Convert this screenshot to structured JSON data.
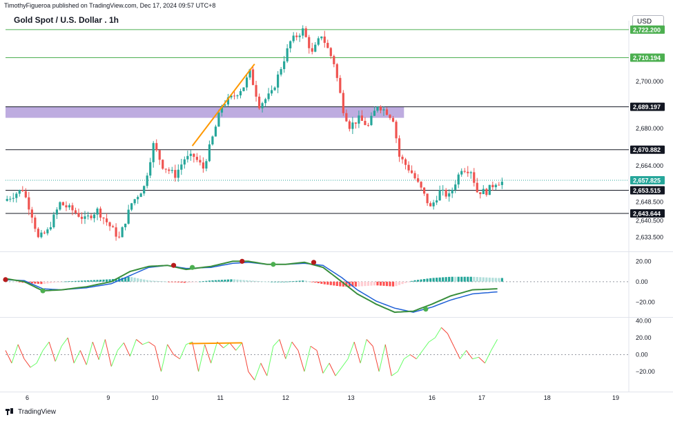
{
  "header": {
    "attribution": "TimothyFigueroa published on TradingView.com, Dec 17, 2024 09:57 UTC+8",
    "symbol_title": "Gold Spot / U.S. Dollar . 1h",
    "currency": "USD"
  },
  "footer": {
    "brand": "TradingView"
  },
  "colors": {
    "up": "#26a69a",
    "down": "#ef5350",
    "zone": "#b39ddb",
    "trend": "#ff9800",
    "resistance_green": "#4caf50",
    "black_line": "#131722",
    "macd_line": "#388e3c",
    "signal_line": "#1e5fd6",
    "macd_dark": "#b71c1c",
    "osc_up": "#66ff66",
    "osc_down": "#f44336"
  },
  "chart_data": [
    {
      "type": "candlestick",
      "name": "price",
      "x_ticks": [
        {
          "label": "6",
          "t": 7
        },
        {
          "label": "9",
          "t": 33
        },
        {
          "label": "10",
          "t": 48
        },
        {
          "label": "11",
          "t": 69
        },
        {
          "label": "12",
          "t": 90
        },
        {
          "label": "13",
          "t": 111
        },
        {
          "label": "16",
          "t": 137
        },
        {
          "label": "17",
          "t": 153
        },
        {
          "label": "18",
          "t": 174
        },
        {
          "label": "19",
          "t": 196
        }
      ],
      "y_ticks": [
        2633.5,
        2640.5,
        2648.5,
        2664.0,
        2680.0,
        2700.0
      ],
      "ylim": [
        2628,
        2726
      ],
      "price_levels": [
        {
          "value": 2722.2,
          "label": "2,722.200",
          "color": "#4caf50"
        },
        {
          "value": 2710.194,
          "label": "2,710.194",
          "color": "#4caf50"
        },
        {
          "value": 2689.197,
          "label": "2,689.197",
          "color": "#131722"
        },
        {
          "value": 2670.882,
          "label": "2,670.882",
          "color": "#131722"
        },
        {
          "value": 2657.825,
          "label": "2,657.825",
          "color": "#26a69a",
          "dotted": true
        },
        {
          "value": 2653.515,
          "label": "2,653.515",
          "color": "#131722"
        },
        {
          "value": 2643.644,
          "label": "2,643.644",
          "color": "#131722"
        }
      ],
      "zone": {
        "from": 2684.5,
        "to": 2689.197
      },
      "trend_line": {
        "t1": 60,
        "v1": 2672.5,
        "t2": 80,
        "v2": 2707.5
      },
      "anchors": [
        [
          0,
          2649
        ],
        [
          6,
          2654
        ],
        [
          9,
          2643
        ],
        [
          11,
          2633
        ],
        [
          14,
          2636
        ],
        [
          18,
          2648
        ],
        [
          22,
          2645
        ],
        [
          26,
          2641
        ],
        [
          30,
          2645
        ],
        [
          33,
          2640
        ],
        [
          37,
          2633
        ],
        [
          41,
          2648
        ],
        [
          45,
          2655
        ],
        [
          48,
          2673
        ],
        [
          51,
          2664
        ],
        [
          55,
          2660
        ],
        [
          58,
          2667
        ],
        [
          61,
          2668
        ],
        [
          64,
          2663
        ],
        [
          67,
          2676
        ],
        [
          70,
          2690
        ],
        [
          74,
          2694
        ],
        [
          77,
          2698
        ],
        [
          79,
          2704
        ],
        [
          82,
          2690
        ],
        [
          86,
          2695
        ],
        [
          89,
          2706
        ],
        [
          92,
          2717
        ],
        [
          96,
          2722
        ],
        [
          99,
          2712
        ],
        [
          102,
          2720
        ],
        [
          106,
          2708
        ],
        [
          109,
          2688
        ],
        [
          111,
          2681
        ],
        [
          114,
          2684
        ],
        [
          117,
          2681
        ],
        [
          120,
          2690
        ],
        [
          123,
          2687
        ],
        [
          125,
          2684
        ],
        [
          127,
          2668
        ],
        [
          131,
          2661
        ],
        [
          134,
          2654
        ],
        [
          137,
          2646
        ],
        [
          140,
          2653
        ],
        [
          143,
          2651
        ],
        [
          147,
          2663
        ],
        [
          150,
          2662
        ],
        [
          152,
          2653
        ],
        [
          155,
          2653
        ],
        [
          158,
          2657
        ]
      ]
    },
    {
      "type": "macd",
      "y_ticks": [
        20.0,
        0.0,
        -20.0
      ],
      "ylim": [
        -32,
        27
      ],
      "macd_anchors": [
        [
          0,
          3
        ],
        [
          6,
          0
        ],
        [
          12,
          -9
        ],
        [
          18,
          -8
        ],
        [
          26,
          -5
        ],
        [
          34,
          0
        ],
        [
          40,
          10
        ],
        [
          46,
          15
        ],
        [
          52,
          16
        ],
        [
          58,
          12
        ],
        [
          66,
          15
        ],
        [
          73,
          20
        ],
        [
          78,
          20
        ],
        [
          84,
          17
        ],
        [
          90,
          17
        ],
        [
          96,
          19
        ],
        [
          102,
          14
        ],
        [
          108,
          0
        ],
        [
          113,
          -12
        ],
        [
          119,
          -22
        ],
        [
          125,
          -30
        ],
        [
          131,
          -29
        ],
        [
          137,
          -22
        ],
        [
          143,
          -14
        ],
        [
          150,
          -8
        ],
        [
          158,
          -7
        ]
      ],
      "signal_anchors": [
        [
          0,
          2
        ],
        [
          6,
          1
        ],
        [
          12,
          -7
        ],
        [
          18,
          -8
        ],
        [
          26,
          -6
        ],
        [
          34,
          -2
        ],
        [
          40,
          6
        ],
        [
          46,
          14
        ],
        [
          52,
          16
        ],
        [
          58,
          13
        ],
        [
          66,
          14
        ],
        [
          73,
          18
        ],
        [
          78,
          19
        ],
        [
          84,
          17
        ],
        [
          90,
          17
        ],
        [
          96,
          18
        ],
        [
          102,
          16
        ],
        [
          108,
          4
        ],
        [
          113,
          -8
        ],
        [
          119,
          -19
        ],
        [
          125,
          -26
        ],
        [
          131,
          -30
        ],
        [
          137,
          -25
        ],
        [
          143,
          -18
        ],
        [
          150,
          -12
        ],
        [
          158,
          -10
        ]
      ],
      "cross_dots": [
        {
          "t": 0,
          "v": 2,
          "kind": "bear"
        },
        {
          "t": 12,
          "v": -9,
          "kind": "bull"
        },
        {
          "t": 54,
          "v": 16,
          "kind": "bear"
        },
        {
          "t": 60,
          "v": 14,
          "kind": "bull"
        },
        {
          "t": 76,
          "v": 20,
          "kind": "bear"
        },
        {
          "t": 86,
          "v": 17,
          "kind": "bull"
        },
        {
          "t": 99,
          "v": 19,
          "kind": "bear"
        },
        {
          "t": 135,
          "v": -27,
          "kind": "bull"
        }
      ]
    },
    {
      "type": "oscillator",
      "y_ticks": [
        40.0,
        20.0,
        0.0,
        -20.0
      ],
      "ylim": [
        -42,
        42
      ],
      "trend_line": {
        "t1": 59,
        "v1": 13,
        "t2": 76,
        "v2": 14
      },
      "anchors": [
        [
          0,
          5
        ],
        [
          2,
          -10
        ],
        [
          4,
          12
        ],
        [
          6,
          -5
        ],
        [
          8,
          -15
        ],
        [
          10,
          -10
        ],
        [
          12,
          5
        ],
        [
          14,
          15
        ],
        [
          16,
          -8
        ],
        [
          18,
          10
        ],
        [
          20,
          20
        ],
        [
          22,
          -10
        ],
        [
          24,
          5
        ],
        [
          26,
          -12
        ],
        [
          28,
          15
        ],
        [
          30,
          -6
        ],
        [
          32,
          18
        ],
        [
          34,
          -14
        ],
        [
          36,
          5
        ],
        [
          38,
          14
        ],
        [
          40,
          -2
        ],
        [
          42,
          18
        ],
        [
          44,
          12
        ],
        [
          46,
          15
        ],
        [
          48,
          10
        ],
        [
          50,
          -20
        ],
        [
          52,
          12
        ],
        [
          54,
          0
        ],
        [
          56,
          -5
        ],
        [
          58,
          12
        ],
        [
          60,
          15
        ],
        [
          62,
          -20
        ],
        [
          64,
          12
        ],
        [
          66,
          -10
        ],
        [
          68,
          15
        ],
        [
          70,
          8
        ],
        [
          72,
          14
        ],
        [
          74,
          5
        ],
        [
          76,
          14
        ],
        [
          78,
          -20
        ],
        [
          80,
          -30
        ],
        [
          82,
          -10
        ],
        [
          84,
          -25
        ],
        [
          86,
          10
        ],
        [
          88,
          18
        ],
        [
          90,
          -5
        ],
        [
          92,
          15
        ],
        [
          94,
          5
        ],
        [
          96,
          -20
        ],
        [
          98,
          10
        ],
        [
          100,
          5
        ],
        [
          102,
          -22
        ],
        [
          104,
          -10
        ],
        [
          106,
          -25
        ],
        [
          108,
          -15
        ],
        [
          110,
          -5
        ],
        [
          112,
          15
        ],
        [
          114,
          -10
        ],
        [
          116,
          18
        ],
        [
          118,
          10
        ],
        [
          120,
          -20
        ],
        [
          122,
          12
        ],
        [
          124,
          -25
        ],
        [
          126,
          -20
        ],
        [
          128,
          -5
        ],
        [
          130,
          0
        ],
        [
          132,
          -5
        ],
        [
          134,
          5
        ],
        [
          136,
          15
        ],
        [
          138,
          20
        ],
        [
          140,
          32
        ],
        [
          142,
          25
        ],
        [
          144,
          10
        ],
        [
          146,
          -5
        ],
        [
          148,
          5
        ],
        [
          150,
          -5
        ],
        [
          152,
          -3
        ],
        [
          154,
          -10
        ],
        [
          156,
          5
        ],
        [
          158,
          18
        ]
      ]
    }
  ]
}
